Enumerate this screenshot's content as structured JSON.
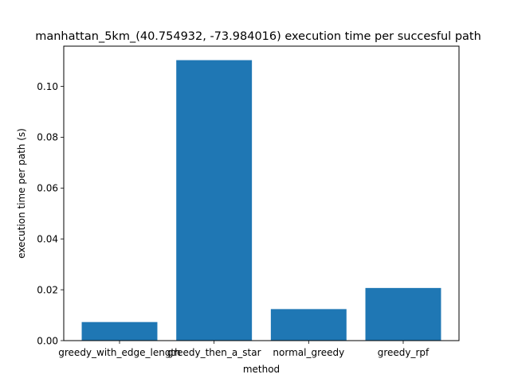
{
  "chart_data": {
    "type": "bar",
    "title": "manhattan_5km_(40.754932, -73.984016) execution time per succesful path",
    "xlabel": "method",
    "ylabel": "execution time per path (s)",
    "categories": [
      "greedy_with_edge_length",
      "greedy_then_a_star",
      "normal_greedy",
      "greedy_rpf"
    ],
    "values": [
      0.0073,
      0.1103,
      0.0124,
      0.0207
    ],
    "ylim": [
      0,
      0.1158
    ],
    "yticks": [
      0.0,
      0.02,
      0.04,
      0.06,
      0.08,
      0.1
    ],
    "ytick_labels": [
      "0.00",
      "0.02",
      "0.04",
      "0.06",
      "0.08",
      "0.10"
    ],
    "grid": false,
    "bar_color": "#1f77b4"
  }
}
